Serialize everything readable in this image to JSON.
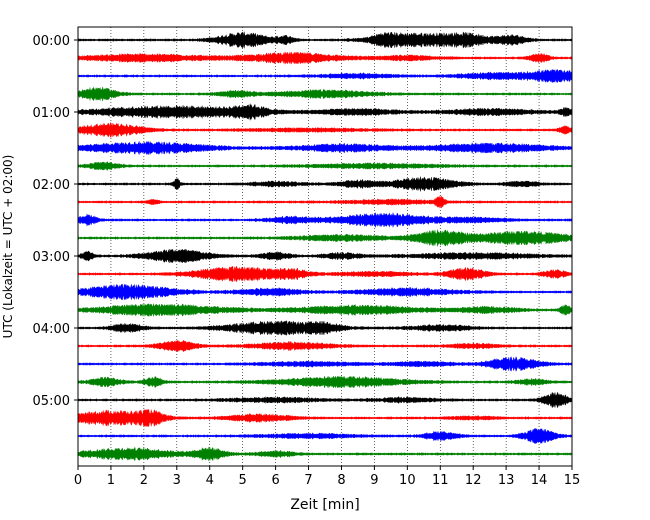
{
  "chart_data": {
    "type": "line",
    "chart_kind": "helicorder",
    "xlabel": "Zeit  [min]",
    "ylabel": "UTC (Lokalzeit = UTC + 02:00)",
    "xlim": [
      0,
      15
    ],
    "x_ticks": [
      "0",
      "1",
      "2",
      "3",
      "4",
      "5",
      "6",
      "7",
      "8",
      "9",
      "10",
      "11",
      "12",
      "13",
      "14",
      "15"
    ],
    "y_ticks": [
      "00:00",
      "01:00",
      "02:00",
      "03:00",
      "04:00",
      "05:00"
    ],
    "grid": "vertical dotted at each minute",
    "trace_colors": [
      "#000000",
      "#ff0000",
      "#0000ff",
      "#008000"
    ],
    "minutes_per_line": 15,
    "series": [
      {
        "start": "00:00",
        "bursts": [
          [
            5.0,
            0.8,
            1.0
          ],
          [
            6.3,
            0.3,
            0.5
          ],
          [
            10.2,
            1.2,
            0.9
          ],
          [
            11.8,
            0.8,
            0.8
          ],
          [
            13.2,
            0.5,
            0.6
          ],
          [
            9.3,
            0.4,
            0.5
          ]
        ]
      },
      {
        "start": "00:15",
        "bursts": [
          [
            2.0,
            2.0,
            0.5
          ],
          [
            6.5,
            1.5,
            0.7
          ],
          [
            14.0,
            0.3,
            0.6
          ],
          [
            10.0,
            1.0,
            0.3
          ]
        ]
      },
      {
        "start": "00:30",
        "bursts": [
          [
            14.5,
            1.0,
            0.8
          ],
          [
            8.5,
            1.2,
            0.3
          ],
          [
            12.5,
            1.0,
            0.4
          ]
        ]
      },
      {
        "start": "00:45",
        "bursts": [
          [
            0.6,
            0.6,
            0.9
          ],
          [
            7.5,
            1.5,
            0.5
          ],
          [
            4.8,
            0.6,
            0.4
          ]
        ]
      },
      {
        "start": "01:00",
        "bursts": [
          [
            2.9,
            2.6,
            0.8
          ],
          [
            5.2,
            0.5,
            0.7
          ],
          [
            8.5,
            1.2,
            0.4
          ],
          [
            12.5,
            1.5,
            0.4
          ],
          [
            14.8,
            0.2,
            0.5
          ]
        ]
      },
      {
        "start": "01:15",
        "bursts": [
          [
            1.0,
            1.0,
            0.9
          ],
          [
            14.8,
            0.2,
            0.5
          ],
          [
            7.0,
            2.0,
            0.2
          ]
        ]
      },
      {
        "start": "01:30",
        "bursts": [
          [
            2.0,
            2.0,
            0.8
          ],
          [
            8.0,
            1.5,
            0.5
          ],
          [
            12.5,
            2.0,
            0.6
          ]
        ]
      },
      {
        "start": "01:45",
        "bursts": [
          [
            0.8,
            0.5,
            0.5
          ],
          [
            9.0,
            2.0,
            0.3
          ]
        ]
      },
      {
        "start": "02:00",
        "bursts": [
          [
            3.0,
            0.1,
            0.8
          ],
          [
            10.5,
            1.0,
            0.9
          ],
          [
            8.5,
            0.6,
            0.5
          ],
          [
            6.0,
            0.8,
            0.3
          ],
          [
            13.5,
            0.5,
            0.4
          ]
        ]
      },
      {
        "start": "02:15",
        "bursts": [
          [
            11.0,
            0.15,
            0.7
          ],
          [
            2.3,
            0.2,
            0.3
          ],
          [
            9.5,
            1.5,
            0.3
          ]
        ]
      },
      {
        "start": "02:30",
        "bursts": [
          [
            0.3,
            0.3,
            0.7
          ],
          [
            9.3,
            1.5,
            0.9
          ],
          [
            6.5,
            0.8,
            0.4
          ],
          [
            12.0,
            1.0,
            0.3
          ]
        ]
      },
      {
        "start": "02:45",
        "bursts": [
          [
            11.0,
            0.8,
            1.0
          ],
          [
            13.5,
            1.5,
            0.9
          ],
          [
            8.0,
            1.5,
            0.4
          ]
        ]
      },
      {
        "start": "03:00",
        "bursts": [
          [
            0.3,
            0.2,
            0.6
          ],
          [
            3.0,
            1.0,
            0.9
          ],
          [
            6.0,
            0.5,
            0.5
          ],
          [
            8.0,
            0.6,
            0.4
          ],
          [
            12.0,
            2.0,
            0.4
          ]
        ]
      },
      {
        "start": "03:15",
        "bursts": [
          [
            4.8,
            1.3,
            1.0
          ],
          [
            6.5,
            0.5,
            0.6
          ],
          [
            11.8,
            0.6,
            0.8
          ],
          [
            14.5,
            0.4,
            0.5
          ],
          [
            9.0,
            1.2,
            0.3
          ]
        ]
      },
      {
        "start": "03:30",
        "bursts": [
          [
            1.5,
            1.5,
            1.0
          ],
          [
            5.8,
            1.0,
            0.5
          ],
          [
            10.0,
            1.5,
            0.5
          ]
        ]
      },
      {
        "start": "03:45",
        "bursts": [
          [
            2.5,
            2.0,
            0.8
          ],
          [
            8.5,
            2.0,
            0.6
          ],
          [
            14.8,
            0.2,
            0.6
          ],
          [
            12.5,
            1.0,
            0.4
          ]
        ]
      },
      {
        "start": "04:00",
        "bursts": [
          [
            1.5,
            0.5,
            0.6
          ],
          [
            6.0,
            1.5,
            0.9
          ],
          [
            7.5,
            0.5,
            0.5
          ],
          [
            11.0,
            1.0,
            0.4
          ]
        ]
      },
      {
        "start": "04:15",
        "bursts": [
          [
            3.0,
            0.6,
            0.7
          ],
          [
            6.5,
            1.2,
            0.5
          ],
          [
            12.0,
            0.8,
            0.3
          ]
        ]
      },
      {
        "start": "04:30",
        "bursts": [
          [
            13.2,
            0.8,
            0.9
          ],
          [
            7.0,
            1.5,
            0.3
          ],
          [
            10.5,
            1.0,
            0.3
          ]
        ]
      },
      {
        "start": "04:45",
        "bursts": [
          [
            0.8,
            0.5,
            0.6
          ],
          [
            2.3,
            0.3,
            0.7
          ],
          [
            8.0,
            2.0,
            0.7
          ],
          [
            13.8,
            0.5,
            0.4
          ]
        ]
      },
      {
        "start": "05:00",
        "bursts": [
          [
            14.5,
            0.4,
            1.0
          ],
          [
            6.0,
            1.5,
            0.3
          ],
          [
            10.0,
            1.0,
            0.3
          ]
        ]
      },
      {
        "start": "05:15",
        "bursts": [
          [
            1.0,
            1.2,
            1.0
          ],
          [
            2.2,
            0.4,
            0.8
          ],
          [
            5.5,
            1.0,
            0.5
          ],
          [
            12.0,
            0.8,
            0.2
          ]
        ]
      },
      {
        "start": "05:30",
        "bursts": [
          [
            14.0,
            0.5,
            1.0
          ],
          [
            11.0,
            0.5,
            0.6
          ],
          [
            7.0,
            1.5,
            0.3
          ]
        ]
      },
      {
        "start": "05:45",
        "bursts": [
          [
            1.5,
            1.5,
            0.8
          ],
          [
            4.0,
            0.5,
            0.8
          ],
          [
            6.0,
            0.6,
            0.4
          ]
        ]
      }
    ]
  }
}
